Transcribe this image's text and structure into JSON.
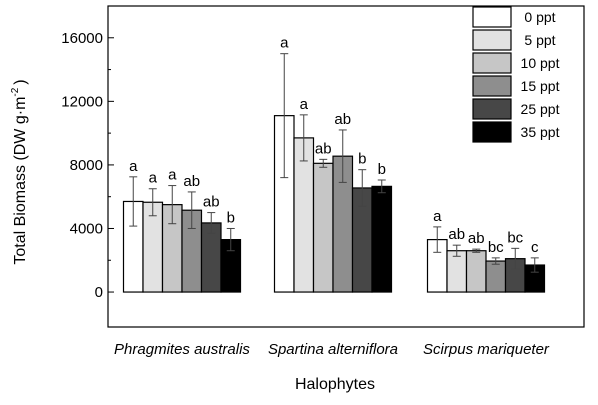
{
  "chart_data": {
    "type": "bar",
    "xlabel": "Halophytes",
    "ylabel": "Total Biomass (DW g·m",
    "ylabel_sup": "-2",
    "ylabel_close": ")",
    "ylim": [
      -2200,
      18000
    ],
    "yticks": [
      0,
      4000,
      8000,
      12000,
      16000
    ],
    "ytick_labels": [
      "0",
      "4000",
      "8000",
      "12000",
      "16000"
    ],
    "categories": [
      "Phragmites australis",
      "Spartina alterniflora",
      "Scirpus mariqueter"
    ],
    "legend_position": "top-right",
    "grid": false,
    "series": [
      {
        "name": "0 ppt",
        "color": "#ffffff",
        "values": [
          5700,
          11100,
          3300
        ],
        "errors": [
          1550,
          3900,
          800
        ],
        "labels": [
          "a",
          "a",
          "a"
        ]
      },
      {
        "name": "5 ppt",
        "color": "#e2e2e2",
        "values": [
          5650,
          9700,
          2600
        ],
        "errors": [
          850,
          1450,
          350
        ],
        "labels": [
          "a",
          "a",
          "ab"
        ]
      },
      {
        "name": "10 ppt",
        "color": "#c6c6c6",
        "values": [
          5500,
          8100,
          2600
        ],
        "errors": [
          1200,
          250,
          100
        ],
        "labels": [
          "a",
          "ab",
          "ab"
        ]
      },
      {
        "name": "15 ppt",
        "color": "#8e8e8e",
        "values": [
          5150,
          8550,
          1950
        ],
        "errors": [
          1150,
          1650,
          200
        ],
        "labels": [
          "ab",
          "ab",
          "bc"
        ]
      },
      {
        "name": "25 ppt",
        "color": "#474747",
        "values": [
          4350,
          6550,
          2100
        ],
        "errors": [
          650,
          1150,
          650
        ],
        "labels": [
          "ab",
          "b",
          "bc"
        ]
      },
      {
        "name": "35 ppt",
        "color": "#000000",
        "values": [
          3300,
          6650,
          1700
        ],
        "errors": [
          700,
          400,
          450
        ],
        "labels": [
          "b",
          "b",
          "c"
        ]
      }
    ]
  }
}
